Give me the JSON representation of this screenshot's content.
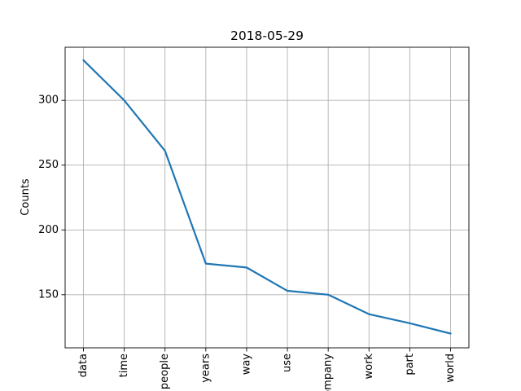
{
  "chart_data": {
    "type": "line",
    "title": "2018-05-29",
    "xlabel": "",
    "ylabel": "Counts",
    "categories": [
      "data",
      "time",
      "people",
      "years",
      "way",
      "use",
      "company",
      "work",
      "part",
      "world"
    ],
    "series": [
      {
        "values": [
          331,
          300,
          261,
          174,
          171,
          153,
          150,
          135,
          128,
          120
        ]
      }
    ],
    "ylim": [
      109,
      341
    ],
    "yticks": [
      150,
      200,
      250,
      300
    ],
    "grid": true,
    "colors": {
      "line": "#1f77b4",
      "grid": "#b0b0b0"
    }
  }
}
